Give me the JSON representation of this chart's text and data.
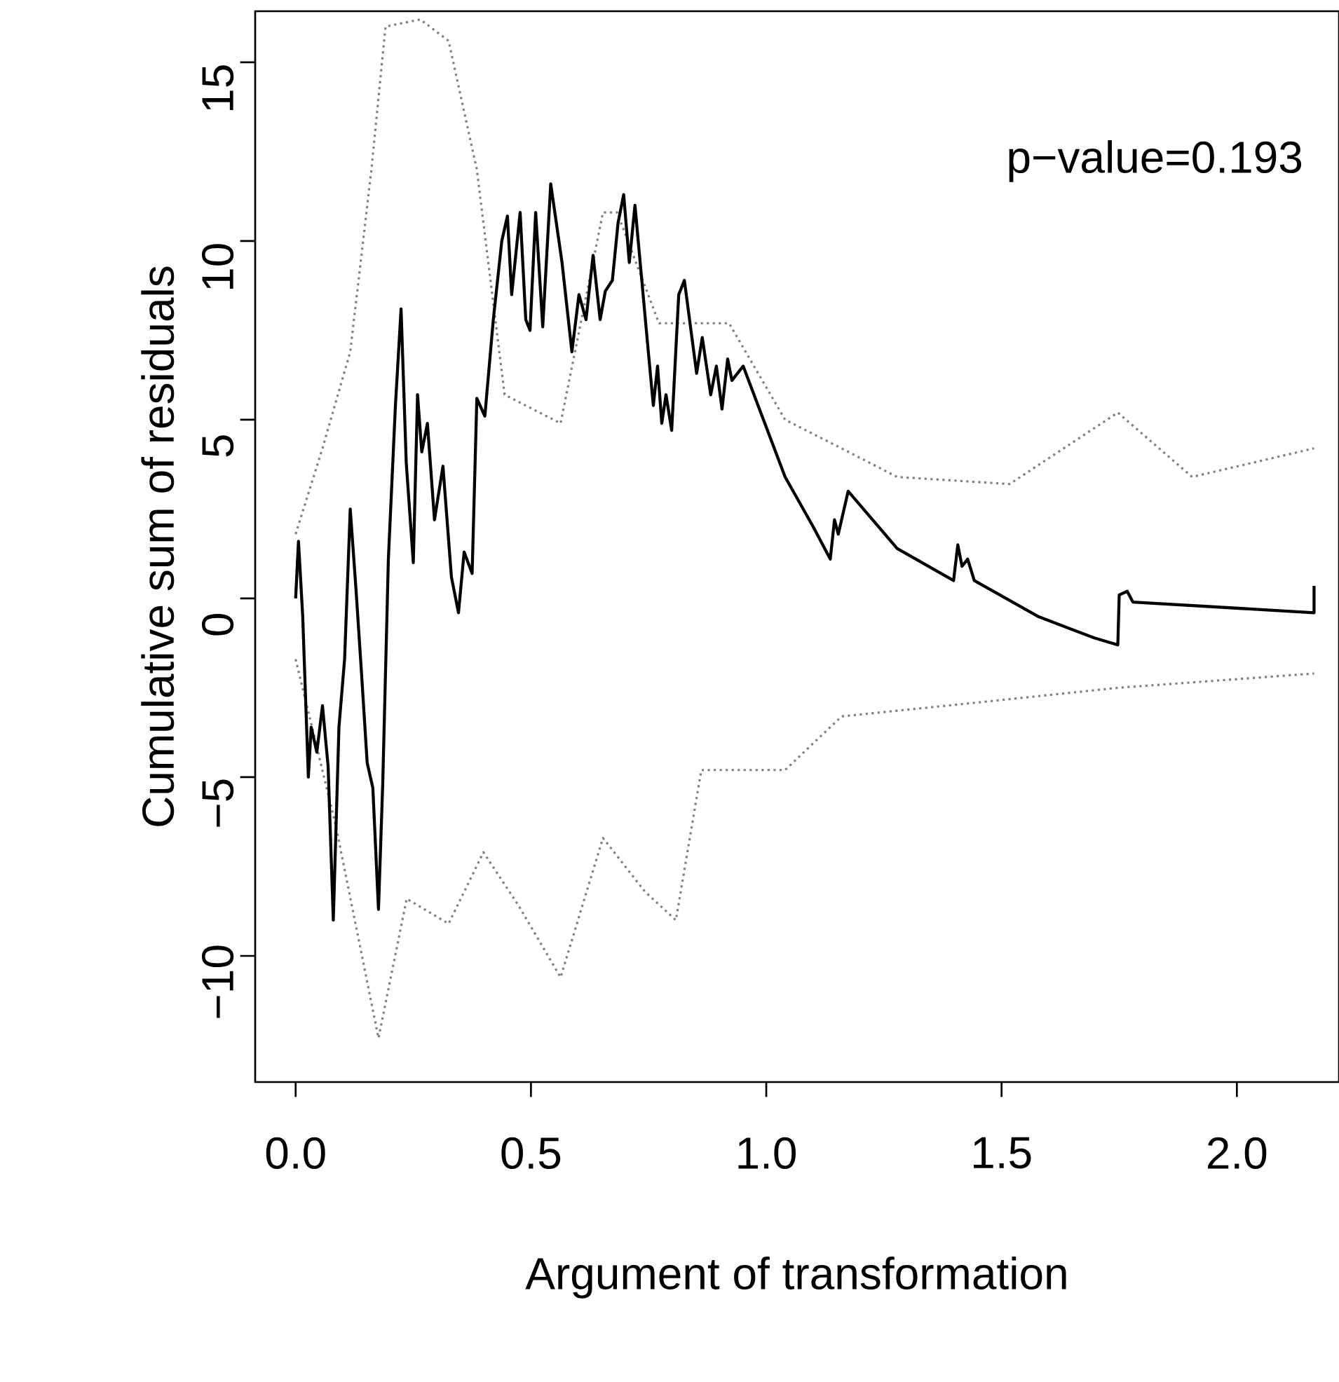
{
  "chart_data": {
    "type": "line",
    "xlabel": "Argument of transformation",
    "ylabel": "Cumulative sum of residuals",
    "annotations": [
      "p−value=0.193"
    ],
    "xlim": [
      -0.086,
      2.217
    ],
    "ylim": [
      -13.53,
      16.43
    ],
    "xticks": [
      {
        "value": 0,
        "label": "0.0"
      },
      {
        "value": 0.5,
        "label": "0.5"
      },
      {
        "value": 1,
        "label": "1.0"
      },
      {
        "value": 1.5,
        "label": "1.5"
      },
      {
        "value": 2,
        "label": "2.0"
      }
    ],
    "yticks": [
      {
        "value": -10,
        "label": "−10"
      },
      {
        "value": -5,
        "label": "−5"
      },
      {
        "value": 0,
        "label": "0"
      },
      {
        "value": 5,
        "label": "5"
      },
      {
        "value": 10,
        "label": "10"
      },
      {
        "value": 15,
        "label": "15"
      }
    ],
    "marker": "none",
    "series": [
      {
        "color": "#808080",
        "line_style": "dotted",
        "x": [
          0.0,
          0.057,
          0.116,
          0.161,
          0.191,
          0.265,
          0.325,
          0.385,
          0.444,
          0.563,
          0.653,
          0.683,
          0.772,
          0.921,
          1.04,
          1.16,
          1.278,
          1.517,
          1.747,
          1.905,
          2.164
        ],
        "values": [
          1.8,
          4.2,
          6.9,
          12.0,
          16.0,
          16.2,
          15.6,
          12.0,
          5.7,
          4.9,
          10.8,
          10.8,
          7.7,
          7.7,
          5.0,
          4.2,
          3.4,
          3.2,
          5.2,
          3.4,
          4.2
        ]
      },
      {
        "color": "#808080",
        "line_style": "dotted",
        "x": [
          0.0,
          0.086,
          0.176,
          0.236,
          0.325,
          0.399,
          0.474,
          0.563,
          0.653,
          0.742,
          0.808,
          0.862,
          1.04,
          1.16,
          1.457,
          1.747,
          2.164
        ],
        "values": [
          -1.7,
          -6.4,
          -12.3,
          -8.4,
          -9.1,
          -7.1,
          -8.6,
          -10.6,
          -6.7,
          -8.2,
          -9.0,
          -4.8,
          -4.8,
          -3.3,
          -2.9,
          -2.5,
          -2.1
        ]
      },
      {
        "color": "#000000",
        "line_style": "solid",
        "x": [
          0.0,
          0.006,
          0.015,
          0.027,
          0.033,
          0.045,
          0.057,
          0.069,
          0.08,
          0.092,
          0.104,
          0.116,
          0.128,
          0.14,
          0.152,
          0.164,
          0.176,
          0.185,
          0.197,
          0.212,
          0.224,
          0.235,
          0.25,
          0.259,
          0.268,
          0.28,
          0.295,
          0.313,
          0.331,
          0.346,
          0.358,
          0.375,
          0.385,
          0.402,
          0.42,
          0.438,
          0.45,
          0.459,
          0.477,
          0.489,
          0.498,
          0.51,
          0.525,
          0.542,
          0.566,
          0.587,
          0.602,
          0.617,
          0.632,
          0.647,
          0.658,
          0.673,
          0.685,
          0.697,
          0.709,
          0.721,
          0.748,
          0.76,
          0.769,
          0.778,
          0.787,
          0.799,
          0.814,
          0.826,
          0.852,
          0.864,
          0.882,
          0.894,
          0.906,
          0.918,
          0.927,
          0.951,
          1.04,
          1.1,
          1.136,
          1.145,
          1.153,
          1.174,
          1.278,
          1.398,
          1.407,
          1.416,
          1.428,
          1.442,
          1.577,
          1.696,
          1.747,
          1.75,
          1.767,
          1.779,
          2.164,
          2.164
        ],
        "values": [
          0.0,
          1.6,
          -0.5,
          -5.0,
          -3.6,
          -4.3,
          -3.0,
          -4.7,
          -9.0,
          -3.6,
          -1.7,
          2.5,
          0.3,
          -2.1,
          -4.6,
          -5.3,
          -8.7,
          -5.2,
          1.1,
          5.4,
          8.1,
          3.8,
          1.0,
          5.7,
          4.1,
          4.9,
          2.2,
          3.7,
          0.6,
          -0.4,
          1.3,
          0.7,
          5.6,
          5.1,
          7.8,
          10.0,
          10.7,
          8.5,
          10.8,
          7.8,
          7.5,
          10.8,
          7.6,
          11.6,
          9.4,
          6.9,
          8.5,
          7.8,
          9.6,
          7.8,
          8.6,
          8.9,
          10.5,
          11.3,
          9.4,
          11.0,
          7.1,
          5.4,
          6.5,
          4.9,
          5.7,
          4.7,
          8.5,
          8.9,
          6.3,
          7.3,
          5.7,
          6.5,
          5.3,
          6.7,
          6.1,
          6.5,
          3.4,
          2.0,
          1.1,
          2.2,
          1.8,
          3.0,
          1.4,
          0.5,
          1.5,
          0.9,
          1.1,
          0.5,
          -0.5,
          -1.1,
          -1.3,
          0.1,
          0.2,
          -0.1,
          -0.4,
          0.35
        ]
      }
    ]
  }
}
